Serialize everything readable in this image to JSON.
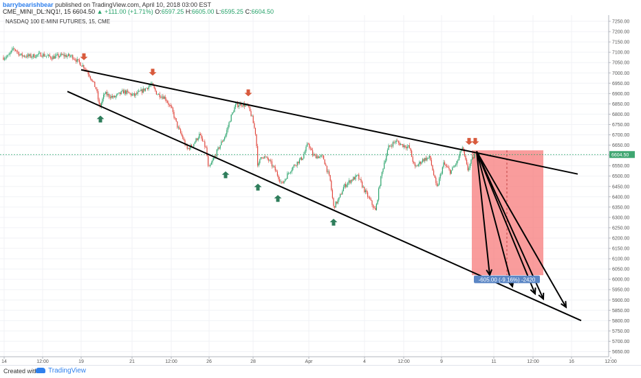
{
  "header": {
    "author": "barrybearishbear",
    "published": "published on TradingView.com, April 10, 2018 03:00 EST",
    "symbol": "CME_MINI_DL:NQ1!, 15",
    "last": "6604.50",
    "change": "▲ +111.00 (+1.71%)",
    "o_label": "O:",
    "o_value": "6597.25",
    "h_label": "H:",
    "h_value": "6605.00",
    "l_label": "L:",
    "l_value": "6595.25",
    "c_label": "C:",
    "c_value": "6604.50"
  },
  "footer": {
    "created_with": "Created with",
    "brand": "TradingView"
  },
  "colors": {
    "up": "#26a269",
    "down": "#e0443a",
    "arrow_down": "#d85a3c",
    "arrow_up": "#2e7d5b",
    "zone": "#f77b7b",
    "badge": "#5b86c5",
    "price_tag": "#3fa671"
  },
  "chart_data": {
    "type": "line",
    "title": "NASDAQ 100 E-MINI FUTURES, 15, CME",
    "y_ticks": [
      7250,
      7200,
      7150,
      7100,
      7050,
      7000,
      6950,
      6900,
      6850,
      6800,
      6750,
      6700,
      6650,
      6600,
      6550,
      6500,
      6450,
      6400,
      6350,
      6300,
      6250,
      6200,
      6150,
      6100,
      6050,
      6000,
      5950,
      5900,
      5850,
      5800,
      5750,
      5700,
      5650
    ],
    "y_tick_labels": [
      "7250.00",
      "7200.00",
      "7150.00",
      "7100.00",
      "7050.00",
      "7000.00",
      "6950.00",
      "6900.00",
      "6850.00",
      "6800.00",
      "6750.00",
      "6700.00",
      "6650.00",
      "6600.00",
      "6550.00",
      "6500.00",
      "6450.00",
      "6400.00",
      "6350.00",
      "6300.00",
      "6250.00",
      "6200.00",
      "6150.00",
      "6100.00",
      "6050.00",
      "6000.00",
      "5950.00",
      "5900.00",
      "5850.00",
      "5800.00",
      "5750.00",
      "5700.00",
      "5650.00"
    ],
    "ylim": [
      5625,
      7280
    ],
    "x_range": [
      0,
      885
    ],
    "x_ticks": [
      {
        "x": 6,
        "label": "14"
      },
      {
        "x": 62,
        "label": "12:00"
      },
      {
        "x": 118,
        "label": "19"
      },
      {
        "x": 192,
        "label": "21"
      },
      {
        "x": 249,
        "label": "12:00"
      },
      {
        "x": 304,
        "label": "26"
      },
      {
        "x": 368,
        "label": "28"
      },
      {
        "x": 449,
        "label": "Apr"
      },
      {
        "x": 530,
        "label": "4"
      },
      {
        "x": 587,
        "label": "12:00"
      },
      {
        "x": 642,
        "label": "9"
      },
      {
        "x": 718,
        "label": "11"
      },
      {
        "x": 775,
        "label": "12:00"
      },
      {
        "x": 831,
        "label": "16"
      },
      {
        "x": 888,
        "label": "12:00"
      }
    ],
    "price_path": [
      [
        5,
        7075
      ],
      [
        12,
        7080
      ],
      [
        20,
        7120
      ],
      [
        30,
        7085
      ],
      [
        45,
        7080
      ],
      [
        60,
        7090
      ],
      [
        75,
        7075
      ],
      [
        90,
        7085
      ],
      [
        105,
        7080
      ],
      [
        115,
        7050
      ],
      [
        122,
        7030
      ],
      [
        130,
        6990
      ],
      [
        140,
        6920
      ],
      [
        145,
        6830
      ],
      [
        152,
        6900
      ],
      [
        165,
        6880
      ],
      [
        180,
        6910
      ],
      [
        195,
        6890
      ],
      [
        210,
        6920
      ],
      [
        220,
        6945
      ],
      [
        228,
        6900
      ],
      [
        240,
        6880
      ],
      [
        250,
        6820
      ],
      [
        258,
        6740
      ],
      [
        265,
        6690
      ],
      [
        272,
        6630
      ],
      [
        280,
        6650
      ],
      [
        290,
        6700
      ],
      [
        300,
        6630
      ],
      [
        303,
        6530
      ],
      [
        310,
        6580
      ],
      [
        320,
        6650
      ],
      [
        328,
        6700
      ],
      [
        335,
        6780
      ],
      [
        342,
        6840
      ],
      [
        350,
        6850
      ],
      [
        360,
        6840
      ],
      [
        366,
        6790
      ],
      [
        372,
        6700
      ],
      [
        375,
        6540
      ],
      [
        380,
        6600
      ],
      [
        390,
        6580
      ],
      [
        400,
        6530
      ],
      [
        410,
        6460
      ],
      [
        420,
        6520
      ],
      [
        430,
        6560
      ],
      [
        440,
        6590
      ],
      [
        448,
        6660
      ],
      [
        455,
        6600
      ],
      [
        470,
        6590
      ],
      [
        480,
        6480
      ],
      [
        485,
        6350
      ],
      [
        493,
        6390
      ],
      [
        500,
        6450
      ],
      [
        510,
        6480
      ],
      [
        520,
        6500
      ],
      [
        530,
        6430
      ],
      [
        540,
        6370
      ],
      [
        546,
        6330
      ],
      [
        552,
        6460
      ],
      [
        558,
        6560
      ],
      [
        565,
        6640
      ],
      [
        575,
        6670
      ],
      [
        585,
        6650
      ],
      [
        595,
        6640
      ],
      [
        603,
        6540
      ],
      [
        615,
        6580
      ],
      [
        625,
        6590
      ],
      [
        635,
        6440
      ],
      [
        645,
        6560
      ],
      [
        655,
        6520
      ],
      [
        665,
        6570
      ],
      [
        672,
        6640
      ],
      [
        680,
        6530
      ],
      [
        685,
        6570
      ],
      [
        690,
        6605
      ]
    ],
    "trendlines": [
      {
        "from": [
          118,
          7015
        ],
        "to": [
          840,
          6510
        ]
      },
      {
        "from": [
          98,
          6910
        ],
        "to": [
          845,
          5800
        ]
      }
    ],
    "arrows_down": [
      [
        122,
        7065
      ],
      [
        222,
        6990
      ],
      [
        361,
        6890
      ],
      [
        682,
        6655
      ],
      [
        691,
        6655
      ]
    ],
    "arrows_up": [
      [
        146,
        6790
      ],
      [
        328,
        6520
      ],
      [
        375,
        6460
      ],
      [
        404,
        6405
      ],
      [
        485,
        6290
      ]
    ],
    "projection_arrows": [
      {
        "from": [
          693,
          6620
        ],
        "to": [
          712,
          6020
        ]
      },
      {
        "from": [
          693,
          6620
        ],
        "to": [
          745,
          5965
        ]
      },
      {
        "from": [
          693,
          6620
        ],
        "to": [
          778,
          5930
        ]
      },
      {
        "from": [
          693,
          6620
        ],
        "to": [
          790,
          5905
        ]
      },
      {
        "from": [
          693,
          6620
        ],
        "to": [
          823,
          5865
        ]
      }
    ],
    "target_zone": {
      "x_from": 686,
      "x_to": 790,
      "y_top": 6625,
      "y_bottom": 6020
    },
    "zone_divider_x": 737,
    "measure_label": "-605.00 (-9.16%) -2420",
    "measure_label_pos": [
      737,
      5998
    ],
    "current_price": 6604.5,
    "current_price_label": "6604.50"
  }
}
